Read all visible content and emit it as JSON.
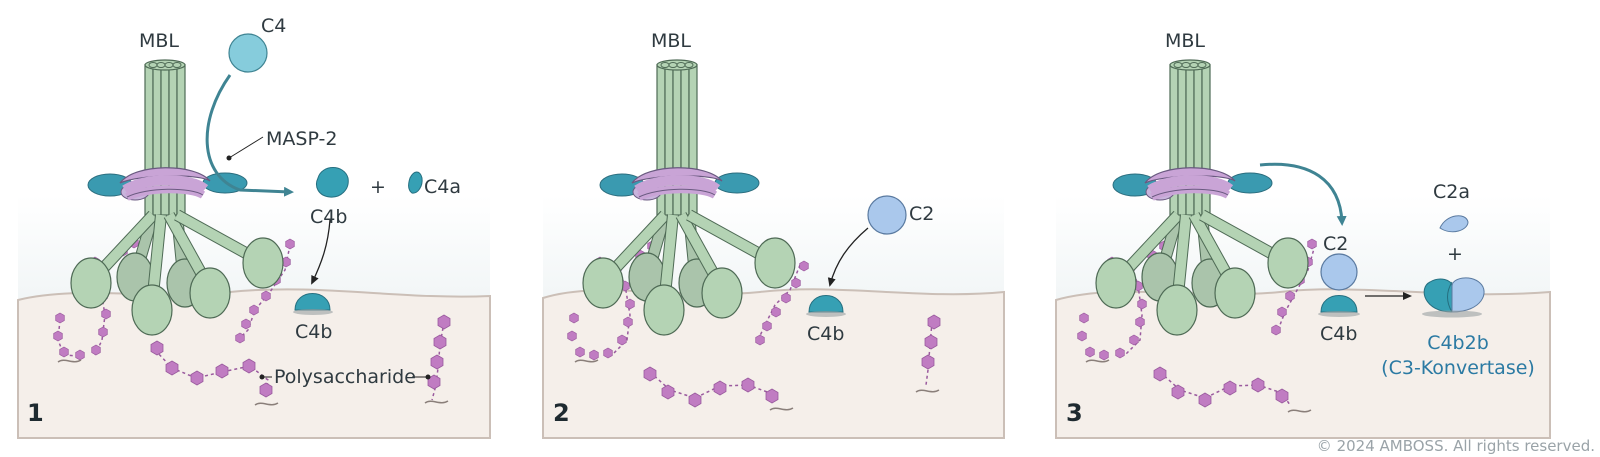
{
  "panels": [
    {
      "number": "1",
      "labels": {
        "mbl": "MBL",
        "c4": "C4",
        "masp2": "MASP-2",
        "c4b_free": "C4b",
        "plus": "+",
        "c4a": "C4a",
        "c4b_bound": "C4b",
        "polysaccharide": "Polysaccharide"
      }
    },
    {
      "number": "2",
      "labels": {
        "mbl": "MBL",
        "c2": "C2",
        "c4b_bound": "C4b"
      }
    },
    {
      "number": "3",
      "labels": {
        "mbl": "MBL",
        "c2a": "C2a",
        "plus": "+",
        "c2": "C2",
        "c4b": "C4b",
        "c4b2b": "C4b2b",
        "convertase": "(C3-Konvertase)"
      }
    }
  ],
  "copyright": "© 2024 AMBOSS. All rights reserved.",
  "colors": {
    "mbl_green": "#b4d3b4",
    "mbl_stroke": "#4e6a55",
    "masp_teal": "#3a9ab0",
    "c4_light": "#86ccdc",
    "c4b_teal": "#36a0b4",
    "c2_blue": "#aac8ec",
    "sugar_purple": "#c07cc2",
    "membrane": "#f5efea",
    "arrow_teal": "#3f8493",
    "label_blue": "#2b7aa3"
  }
}
